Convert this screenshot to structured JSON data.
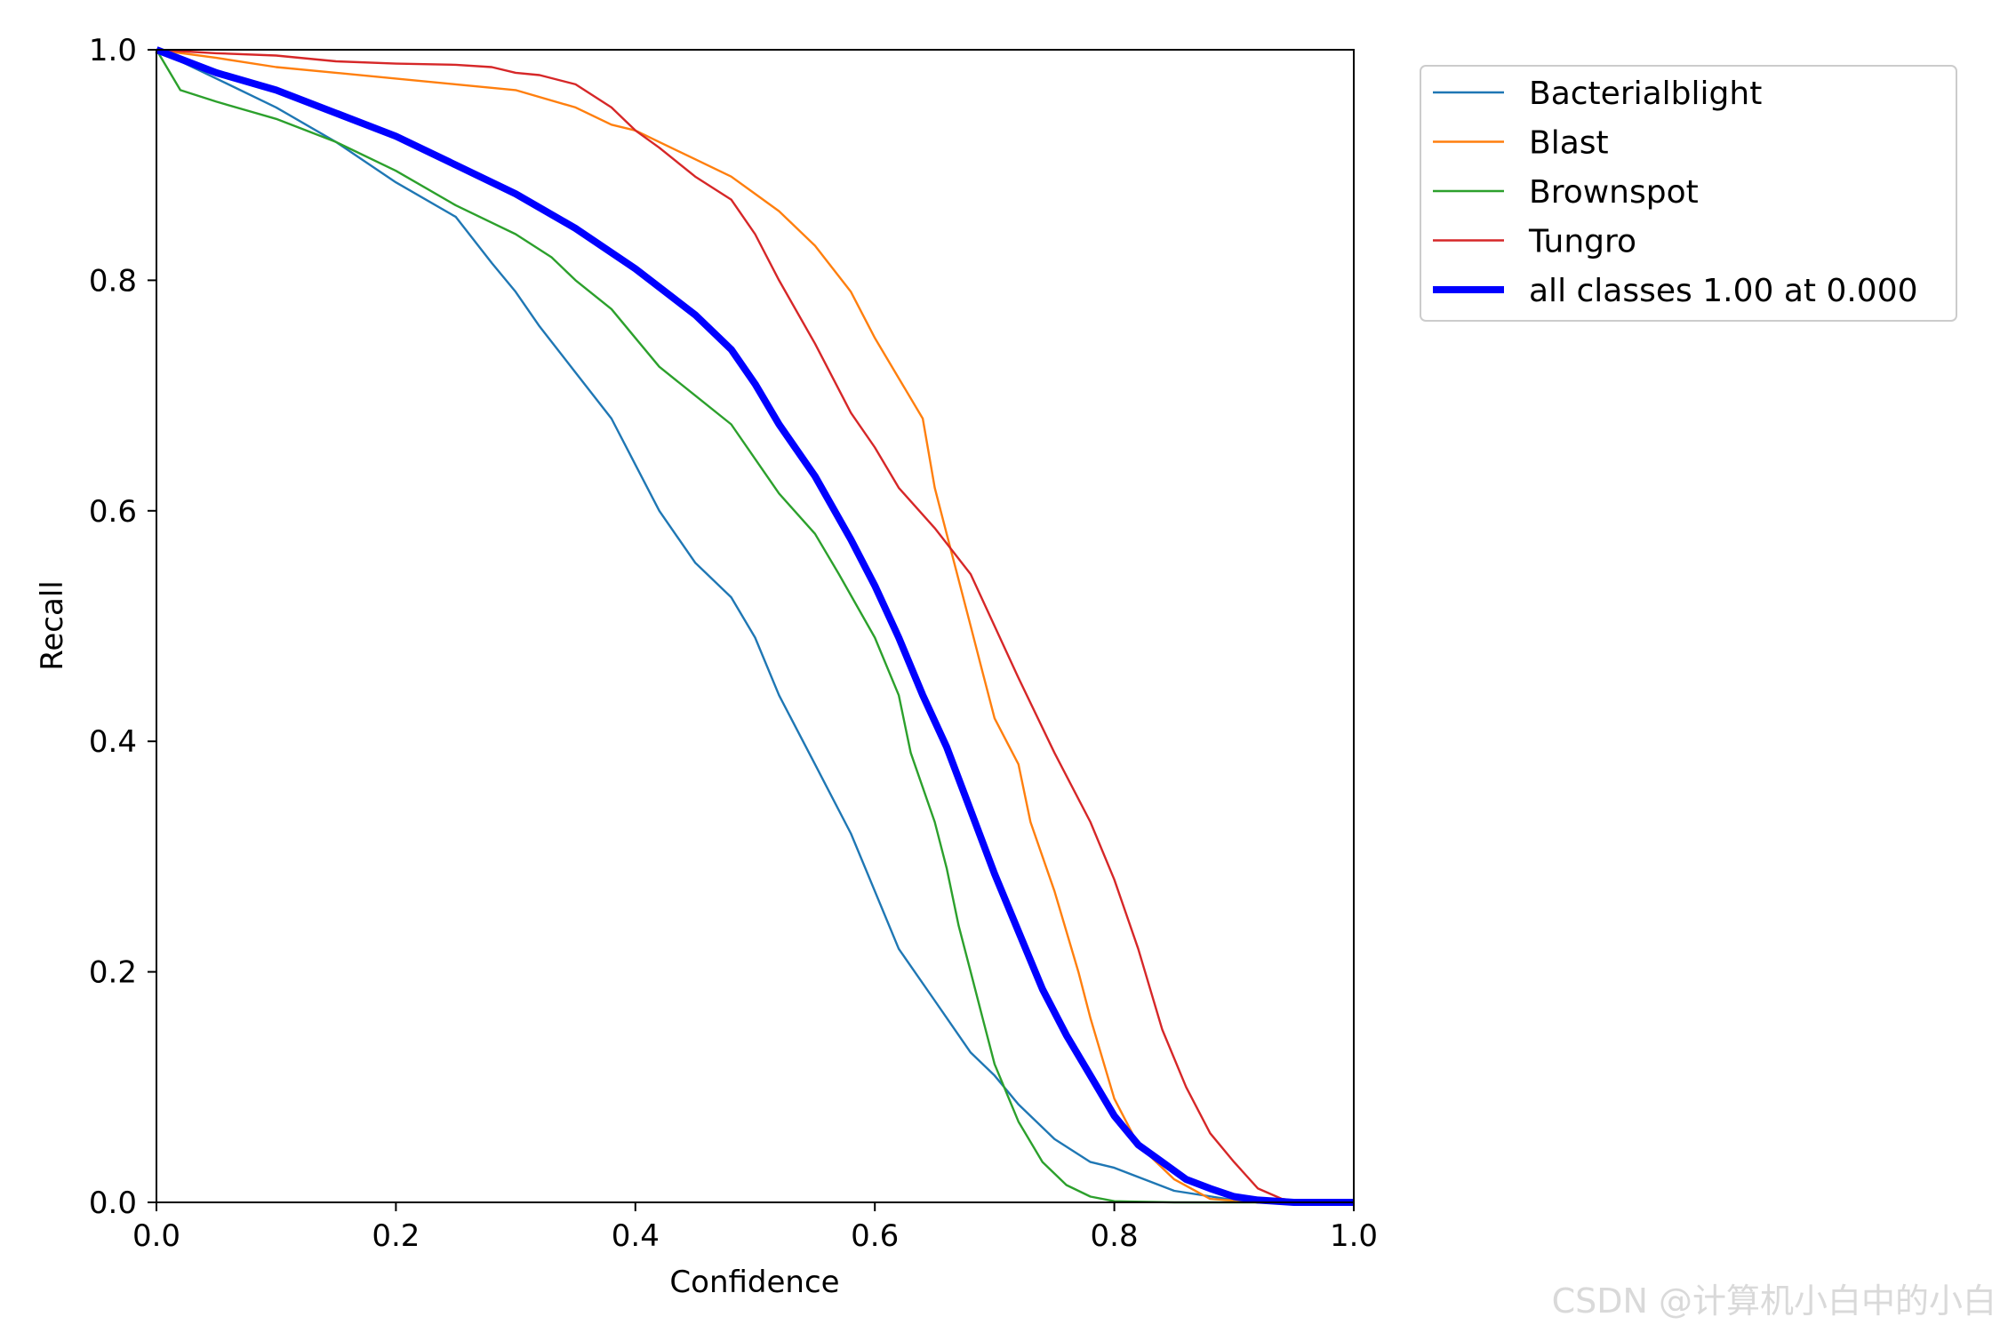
{
  "chart_data": {
    "type": "line",
    "title": "",
    "xlabel": "Confidence",
    "ylabel": "Recall",
    "xlim": [
      0.0,
      1.0
    ],
    "ylim": [
      0.0,
      1.0
    ],
    "xticks": [
      "0.0",
      "0.2",
      "0.4",
      "0.6",
      "0.8",
      "1.0"
    ],
    "yticks": [
      "0.0",
      "0.2",
      "0.4",
      "0.6",
      "0.8",
      "1.0"
    ],
    "grid": false,
    "legend_position": "outside-top-right",
    "series": [
      {
        "name": "Bacterialblight",
        "color": "#1f77b4",
        "line_width": "thin",
        "points": [
          [
            0.0,
            1.0
          ],
          [
            0.05,
            0.975
          ],
          [
            0.1,
            0.95
          ],
          [
            0.15,
            0.92
          ],
          [
            0.2,
            0.885
          ],
          [
            0.25,
            0.855
          ],
          [
            0.28,
            0.815
          ],
          [
            0.3,
            0.79
          ],
          [
            0.32,
            0.76
          ],
          [
            0.35,
            0.72
          ],
          [
            0.38,
            0.68
          ],
          [
            0.4,
            0.64
          ],
          [
            0.42,
            0.6
          ],
          [
            0.45,
            0.555
          ],
          [
            0.48,
            0.525
          ],
          [
            0.5,
            0.49
          ],
          [
            0.52,
            0.44
          ],
          [
            0.55,
            0.38
          ],
          [
            0.58,
            0.32
          ],
          [
            0.6,
            0.27
          ],
          [
            0.62,
            0.22
          ],
          [
            0.65,
            0.175
          ],
          [
            0.68,
            0.13
          ],
          [
            0.7,
            0.11
          ],
          [
            0.72,
            0.085
          ],
          [
            0.75,
            0.055
          ],
          [
            0.78,
            0.035
          ],
          [
            0.8,
            0.03
          ],
          [
            0.85,
            0.01
          ],
          [
            0.9,
            0.002
          ],
          [
            0.95,
            0.0
          ],
          [
            1.0,
            0.0
          ]
        ]
      },
      {
        "name": "Blast",
        "color": "#ff7f0e",
        "line_width": "thin",
        "points": [
          [
            0.0,
            1.0
          ],
          [
            0.05,
            0.993
          ],
          [
            0.1,
            0.985
          ],
          [
            0.15,
            0.98
          ],
          [
            0.2,
            0.975
          ],
          [
            0.25,
            0.97
          ],
          [
            0.3,
            0.965
          ],
          [
            0.35,
            0.95
          ],
          [
            0.38,
            0.935
          ],
          [
            0.4,
            0.93
          ],
          [
            0.42,
            0.92
          ],
          [
            0.45,
            0.905
          ],
          [
            0.48,
            0.89
          ],
          [
            0.5,
            0.875
          ],
          [
            0.52,
            0.86
          ],
          [
            0.55,
            0.83
          ],
          [
            0.58,
            0.79
          ],
          [
            0.6,
            0.75
          ],
          [
            0.62,
            0.715
          ],
          [
            0.64,
            0.68
          ],
          [
            0.65,
            0.62
          ],
          [
            0.66,
            0.58
          ],
          [
            0.67,
            0.54
          ],
          [
            0.68,
            0.5
          ],
          [
            0.69,
            0.46
          ],
          [
            0.7,
            0.42
          ],
          [
            0.72,
            0.38
          ],
          [
            0.73,
            0.33
          ],
          [
            0.75,
            0.27
          ],
          [
            0.77,
            0.2
          ],
          [
            0.78,
            0.16
          ],
          [
            0.8,
            0.09
          ],
          [
            0.82,
            0.05
          ],
          [
            0.85,
            0.02
          ],
          [
            0.88,
            0.003
          ],
          [
            0.92,
            0.0
          ],
          [
            1.0,
            0.0
          ]
        ]
      },
      {
        "name": "Brownspot",
        "color": "#2ca02c",
        "line_width": "thin",
        "points": [
          [
            0.0,
            1.0
          ],
          [
            0.02,
            0.965
          ],
          [
            0.05,
            0.955
          ],
          [
            0.1,
            0.94
          ],
          [
            0.15,
            0.92
          ],
          [
            0.2,
            0.895
          ],
          [
            0.25,
            0.865
          ],
          [
            0.3,
            0.84
          ],
          [
            0.33,
            0.82
          ],
          [
            0.35,
            0.8
          ],
          [
            0.38,
            0.775
          ],
          [
            0.4,
            0.75
          ],
          [
            0.42,
            0.725
          ],
          [
            0.45,
            0.7
          ],
          [
            0.48,
            0.675
          ],
          [
            0.5,
            0.645
          ],
          [
            0.52,
            0.615
          ],
          [
            0.55,
            0.58
          ],
          [
            0.57,
            0.545
          ],
          [
            0.6,
            0.49
          ],
          [
            0.62,
            0.44
          ],
          [
            0.63,
            0.39
          ],
          [
            0.65,
            0.33
          ],
          [
            0.66,
            0.29
          ],
          [
            0.67,
            0.24
          ],
          [
            0.68,
            0.2
          ],
          [
            0.69,
            0.16
          ],
          [
            0.7,
            0.12
          ],
          [
            0.72,
            0.07
          ],
          [
            0.74,
            0.035
          ],
          [
            0.76,
            0.015
          ],
          [
            0.78,
            0.005
          ],
          [
            0.8,
            0.001
          ],
          [
            0.85,
            0.0
          ],
          [
            1.0,
            0.0
          ]
        ]
      },
      {
        "name": "Tungro",
        "color": "#d62728",
        "line_width": "thin",
        "points": [
          [
            0.0,
            1.0
          ],
          [
            0.05,
            0.997
          ],
          [
            0.1,
            0.995
          ],
          [
            0.15,
            0.99
          ],
          [
            0.2,
            0.988
          ],
          [
            0.25,
            0.987
          ],
          [
            0.28,
            0.985
          ],
          [
            0.3,
            0.98
          ],
          [
            0.32,
            0.978
          ],
          [
            0.35,
            0.97
          ],
          [
            0.38,
            0.95
          ],
          [
            0.4,
            0.93
          ],
          [
            0.42,
            0.915
          ],
          [
            0.45,
            0.89
          ],
          [
            0.48,
            0.87
          ],
          [
            0.5,
            0.84
          ],
          [
            0.52,
            0.8
          ],
          [
            0.55,
            0.745
          ],
          [
            0.58,
            0.685
          ],
          [
            0.6,
            0.655
          ],
          [
            0.62,
            0.62
          ],
          [
            0.65,
            0.585
          ],
          [
            0.68,
            0.545
          ],
          [
            0.7,
            0.5
          ],
          [
            0.72,
            0.455
          ],
          [
            0.75,
            0.39
          ],
          [
            0.78,
            0.33
          ],
          [
            0.8,
            0.28
          ],
          [
            0.82,
            0.22
          ],
          [
            0.84,
            0.15
          ],
          [
            0.86,
            0.1
          ],
          [
            0.88,
            0.06
          ],
          [
            0.9,
            0.035
          ],
          [
            0.92,
            0.012
          ],
          [
            0.94,
            0.003
          ],
          [
            0.96,
            0.0
          ],
          [
            1.0,
            0.0
          ]
        ]
      },
      {
        "name": "all classes 1.00 at 0.000",
        "color": "#0000ff",
        "line_width": "thick",
        "points": [
          [
            0.0,
            1.0
          ],
          [
            0.05,
            0.98
          ],
          [
            0.1,
            0.965
          ],
          [
            0.15,
            0.945
          ],
          [
            0.2,
            0.925
          ],
          [
            0.25,
            0.9
          ],
          [
            0.3,
            0.875
          ],
          [
            0.35,
            0.845
          ],
          [
            0.4,
            0.81
          ],
          [
            0.45,
            0.77
          ],
          [
            0.48,
            0.74
          ],
          [
            0.5,
            0.71
          ],
          [
            0.52,
            0.675
          ],
          [
            0.55,
            0.63
          ],
          [
            0.58,
            0.575
          ],
          [
            0.6,
            0.535
          ],
          [
            0.62,
            0.49
          ],
          [
            0.64,
            0.44
          ],
          [
            0.66,
            0.395
          ],
          [
            0.68,
            0.34
          ],
          [
            0.7,
            0.285
          ],
          [
            0.72,
            0.235
          ],
          [
            0.74,
            0.185
          ],
          [
            0.76,
            0.145
          ],
          [
            0.78,
            0.11
          ],
          [
            0.8,
            0.075
          ],
          [
            0.82,
            0.05
          ],
          [
            0.84,
            0.035
          ],
          [
            0.86,
            0.02
          ],
          [
            0.88,
            0.012
          ],
          [
            0.9,
            0.005
          ],
          [
            0.92,
            0.002
          ],
          [
            0.95,
            0.0
          ],
          [
            1.0,
            0.0
          ]
        ]
      }
    ]
  },
  "watermark": "CSDN @计算机小白中的小白"
}
